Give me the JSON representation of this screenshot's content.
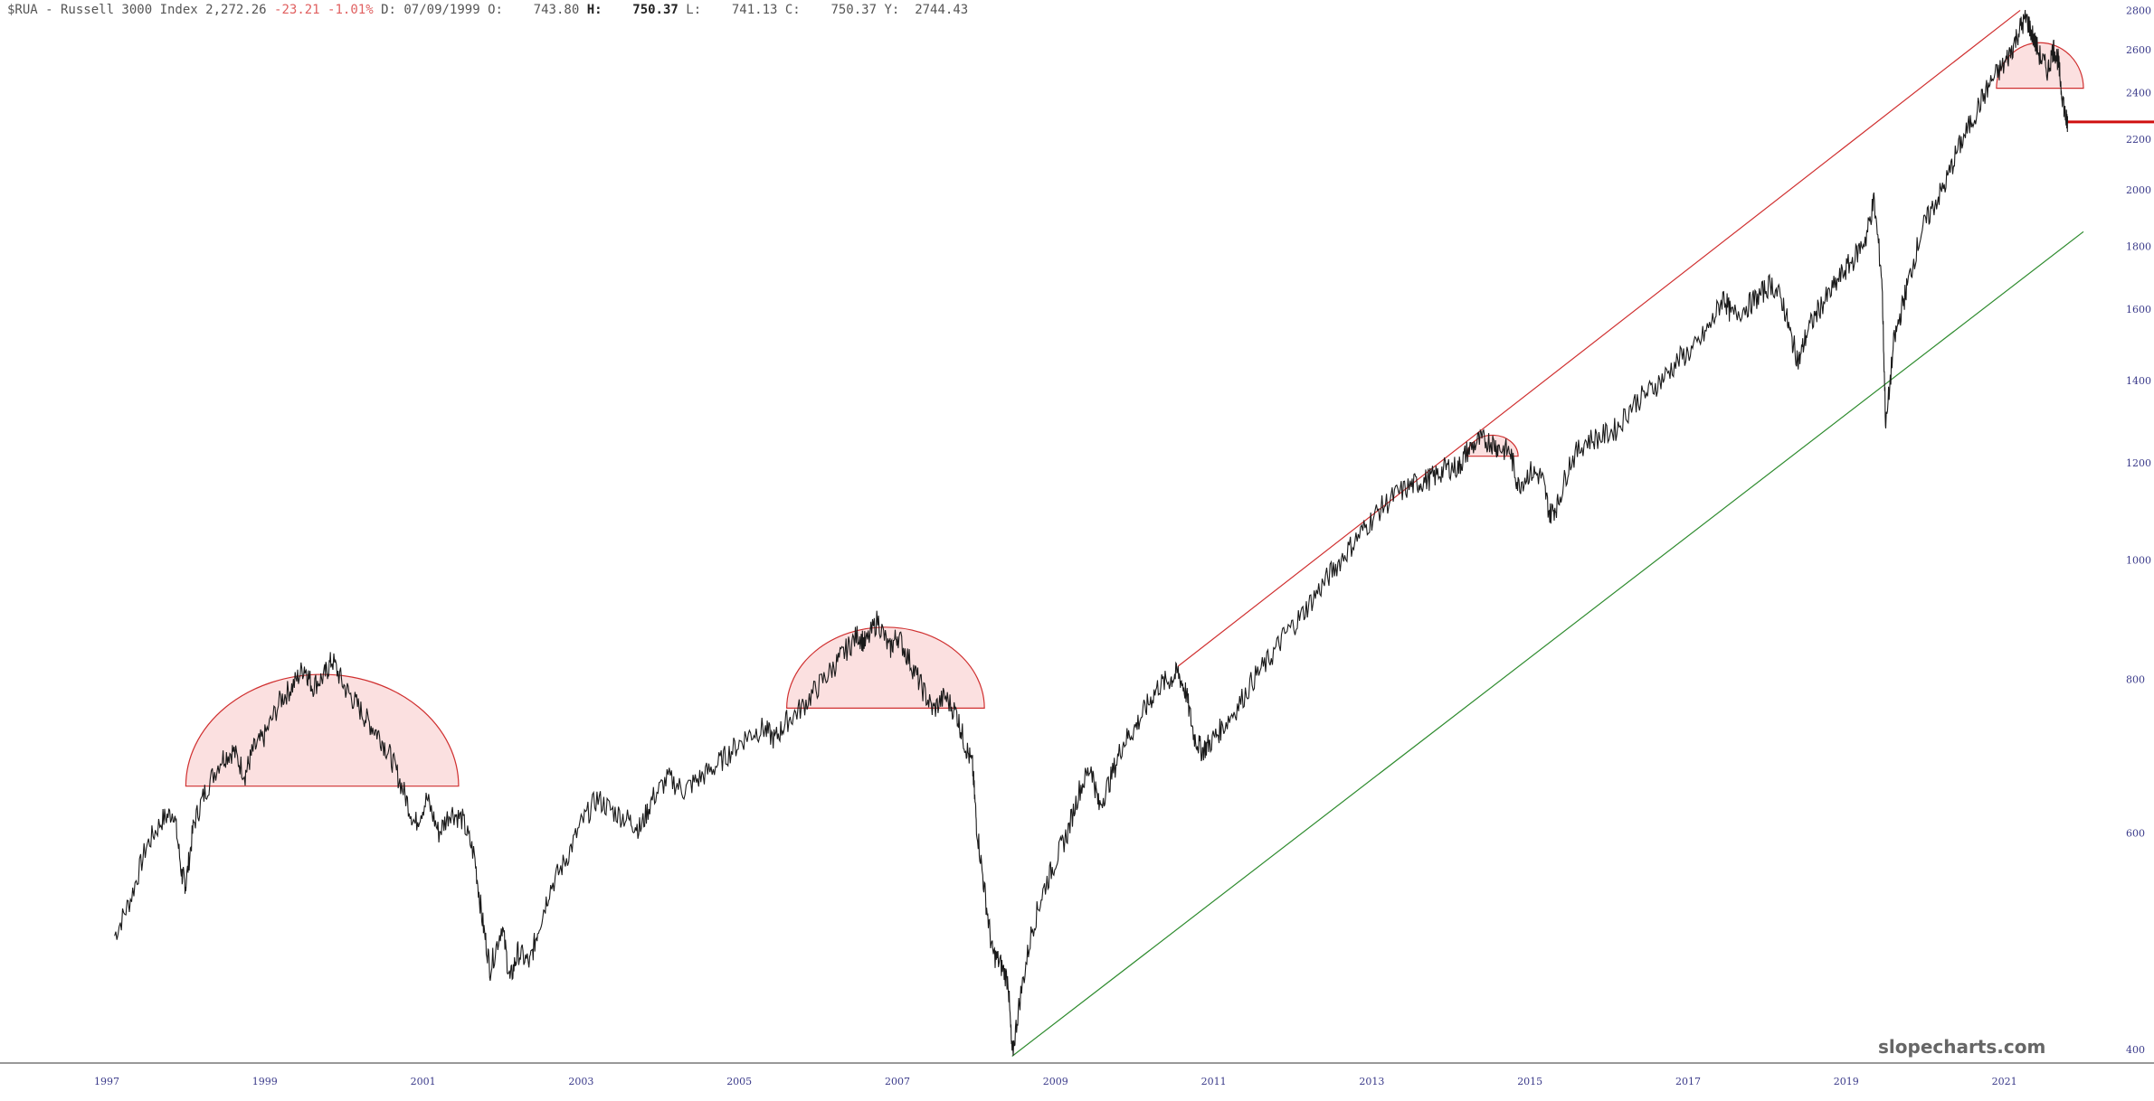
{
  "header": {
    "symbol": "$RUA - Russell 3000 Index",
    "last": "2,272.26",
    "change": "-23.21",
    "change_pct": "-1.01%",
    "d_label": "D:",
    "date": "07/09/1999",
    "o_label": "O:",
    "open": "743.80",
    "h_label": "H:",
    "high": "750.37",
    "l_label": "L:",
    "low": "741.13",
    "c_label": "C:",
    "close": "750.37",
    "y_label": "Y:",
    "y_value": "2744.43"
  },
  "watermark": "slopecharts.com",
  "colors": {
    "price": "#1a1a1a",
    "upper_trend": "#d03030",
    "lower_trend": "#2e8b2e",
    "dome_fill": "#fbe0e0",
    "dome_stroke": "#d03030",
    "support": "#d01010",
    "axis_text": "#3a3a8a"
  },
  "chart_data": {
    "type": "line",
    "y_scale": "log",
    "ylim": [
      390,
      2850
    ],
    "y_ticks": [
      400,
      600,
      800,
      1000,
      1200,
      1400,
      1600,
      1800,
      2000,
      2200,
      2400,
      2600,
      2800
    ],
    "xlim": [
      1997.0,
      2022.0
    ],
    "x_ticks": [
      "1997",
      "1999",
      "2001",
      "2003",
      "2005",
      "2007",
      "2009",
      "2011",
      "2013",
      "2015",
      "2017",
      "2019",
      "2021"
    ],
    "series": [
      {
        "points": [
          [
            1997.1,
            495
          ],
          [
            1997.3,
            530
          ],
          [
            1997.5,
            585
          ],
          [
            1997.7,
            615
          ],
          [
            1997.85,
            625
          ],
          [
            1997.95,
            555
          ],
          [
            1998.0,
            545
          ],
          [
            1998.1,
            610
          ],
          [
            1998.25,
            650
          ],
          [
            1998.45,
            690
          ],
          [
            1998.6,
            700
          ],
          [
            1998.75,
            670
          ],
          [
            1998.85,
            700
          ],
          [
            1999.0,
            720
          ],
          [
            1999.2,
            770
          ],
          [
            1999.35,
            790
          ],
          [
            1999.5,
            820
          ],
          [
            1999.6,
            790
          ],
          [
            1999.75,
            805
          ],
          [
            1999.85,
            830
          ],
          [
            2000.0,
            790
          ],
          [
            2000.15,
            765
          ],
          [
            2000.3,
            740
          ],
          [
            2000.45,
            720
          ],
          [
            2000.6,
            690
          ],
          [
            2000.75,
            650
          ],
          [
            2000.9,
            610
          ],
          [
            2001.05,
            640
          ],
          [
            2001.2,
            600
          ],
          [
            2001.35,
            625
          ],
          [
            2001.5,
            615
          ],
          [
            2001.65,
            575
          ],
          [
            2001.75,
            510
          ],
          [
            2001.85,
            465
          ],
          [
            2002.0,
            505
          ],
          [
            2002.1,
            455
          ],
          [
            2002.2,
            480
          ],
          [
            2002.35,
            470
          ],
          [
            2002.45,
            500
          ],
          [
            2002.6,
            540
          ],
          [
            2002.8,
            570
          ],
          [
            2003.0,
            610
          ],
          [
            2003.2,
            640
          ],
          [
            2003.4,
            625
          ],
          [
            2003.6,
            615
          ],
          [
            2003.75,
            605
          ],
          [
            2003.9,
            640
          ],
          [
            2004.1,
            665
          ],
          [
            2004.3,
            650
          ],
          [
            2004.5,
            665
          ],
          [
            2004.7,
            680
          ],
          [
            2004.9,
            700
          ],
          [
            2005.1,
            720
          ],
          [
            2005.3,
            730
          ],
          [
            2005.45,
            715
          ],
          [
            2005.6,
            740
          ],
          [
            2005.8,
            760
          ],
          [
            2006.0,
            790
          ],
          [
            2006.2,
            820
          ],
          [
            2006.35,
            845
          ],
          [
            2006.5,
            870
          ],
          [
            2006.6,
            855
          ],
          [
            2006.75,
            895
          ],
          [
            2006.9,
            845
          ],
          [
            2007.0,
            870
          ],
          [
            2007.15,
            830
          ],
          [
            2007.3,
            790
          ],
          [
            2007.45,
            755
          ],
          [
            2007.6,
            775
          ],
          [
            2007.75,
            750
          ],
          [
            2007.85,
            710
          ],
          [
            2007.95,
            680
          ],
          [
            2008.0,
            610
          ],
          [
            2008.1,
            540
          ],
          [
            2008.2,
            480
          ],
          [
            2008.3,
            470
          ],
          [
            2008.4,
            455
          ],
          [
            2008.45,
            395
          ],
          [
            2008.55,
            440
          ],
          [
            2008.7,
            500
          ],
          [
            2008.85,
            540
          ],
          [
            2009.0,
            570
          ],
          [
            2009.15,
            600
          ],
          [
            2009.3,
            650
          ],
          [
            2009.45,
            680
          ],
          [
            2009.55,
            630
          ],
          [
            2009.7,
            665
          ],
          [
            2009.85,
            710
          ],
          [
            2010.0,
            730
          ],
          [
            2010.15,
            760
          ],
          [
            2010.3,
            790
          ],
          [
            2010.45,
            800
          ],
          [
            2010.55,
            810
          ],
          [
            2010.65,
            780
          ],
          [
            2010.75,
            720
          ],
          [
            2010.85,
            700
          ],
          [
            2010.95,
            710
          ],
          [
            2011.1,
            730
          ],
          [
            2011.3,
            760
          ],
          [
            2011.5,
            800
          ],
          [
            2011.7,
            830
          ],
          [
            2011.9,
            870
          ],
          [
            2012.1,
            900
          ],
          [
            2012.3,
            940
          ],
          [
            2012.5,
            980
          ],
          [
            2012.7,
            1020
          ],
          [
            2012.9,
            1060
          ],
          [
            2013.1,
            1100
          ],
          [
            2013.3,
            1130
          ],
          [
            2013.5,
            1150
          ],
          [
            2013.65,
            1160
          ],
          [
            2013.8,
            1170
          ],
          [
            2013.95,
            1190
          ],
          [
            2014.1,
            1190
          ],
          [
            2014.2,
            1225
          ],
          [
            2014.35,
            1250
          ],
          [
            2014.5,
            1250
          ],
          [
            2014.6,
            1235
          ],
          [
            2014.75,
            1225
          ],
          [
            2014.85,
            1150
          ],
          [
            2015.0,
            1180
          ],
          [
            2015.15,
            1170
          ],
          [
            2015.25,
            1090
          ],
          [
            2015.35,
            1110
          ],
          [
            2015.5,
            1200
          ],
          [
            2015.7,
            1250
          ],
          [
            2015.9,
            1260
          ],
          [
            2016.1,
            1280
          ],
          [
            2016.3,
            1340
          ],
          [
            2016.5,
            1370
          ],
          [
            2016.7,
            1410
          ],
          [
            2016.9,
            1460
          ],
          [
            2017.1,
            1490
          ],
          [
            2017.3,
            1560
          ],
          [
            2017.45,
            1640
          ],
          [
            2017.55,
            1580
          ],
          [
            2017.75,
            1610
          ],
          [
            2017.9,
            1640
          ],
          [
            2018.05,
            1680
          ],
          [
            2018.2,
            1620
          ],
          [
            2018.3,
            1520
          ],
          [
            2018.4,
            1450
          ],
          [
            2018.5,
            1530
          ],
          [
            2018.65,
            1600
          ],
          [
            2018.8,
            1650
          ],
          [
            2018.95,
            1710
          ],
          [
            2019.1,
            1760
          ],
          [
            2019.25,
            1830
          ],
          [
            2019.35,
            1960
          ],
          [
            2019.45,
            1700
          ],
          [
            2019.5,
            1280
          ],
          [
            2019.6,
            1500
          ],
          [
            2019.7,
            1600
          ],
          [
            2019.8,
            1700
          ],
          [
            2019.95,
            1850
          ],
          [
            2020.1,
            1940
          ],
          [
            2020.25,
            2020
          ],
          [
            2020.4,
            2150
          ],
          [
            2020.55,
            2250
          ],
          [
            2020.7,
            2360
          ],
          [
            2020.85,
            2460
          ],
          [
            2021.0,
            2530
          ],
          [
            2021.1,
            2610
          ],
          [
            2021.2,
            2710
          ],
          [
            2021.28,
            2760
          ],
          [
            2021.35,
            2680
          ],
          [
            2021.45,
            2570
          ],
          [
            2021.55,
            2500
          ],
          [
            2021.62,
            2610
          ],
          [
            2021.68,
            2550
          ],
          [
            2021.72,
            2420
          ],
          [
            2021.78,
            2280
          ],
          [
            2021.8,
            2272
          ]
        ]
      }
    ],
    "upper_trendline": [
      [
        2010.55,
        820
      ],
      [
        2021.2,
        2800
      ]
    ],
    "lower_trendline": [
      [
        2008.45,
        395
      ],
      [
        2022.0,
        1850
      ]
    ],
    "support_line": {
      "y": 2272,
      "from": 2021.8,
      "to": 2022.0
    },
    "domes": [
      {
        "x_start": 1998.0,
        "x_end": 2001.45,
        "base": 655
      },
      {
        "x_start": 2005.6,
        "x_end": 2008.1,
        "base": 758
      },
      {
        "x_start": 2014.2,
        "x_end": 2014.85,
        "base": 1215
      },
      {
        "x_start": 2020.9,
        "x_end": 2022.0,
        "base": 2420
      }
    ]
  }
}
